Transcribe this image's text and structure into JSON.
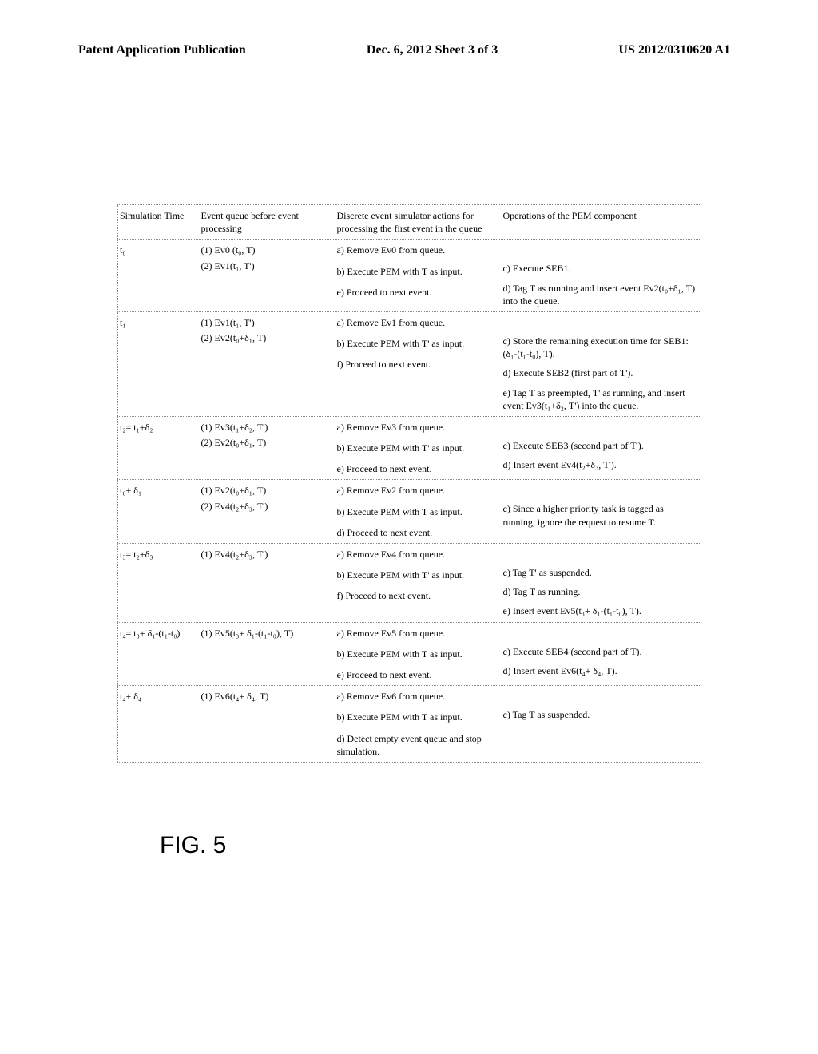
{
  "header": {
    "left": "Patent Application Publication",
    "center": "Dec. 6, 2012   Sheet 3 of 3",
    "right": "US 2012/0310620 A1"
  },
  "figure_label": "FIG. 5",
  "table": {
    "headers": {
      "c1": "Simulation Time",
      "c2": "Event queue before event processing",
      "c3": "Discrete event simulator actions for processing the first event in the queue",
      "c4": "Operations of the PEM component"
    },
    "rows": [
      {
        "time": "t₀",
        "queue": [
          "(1)  Ev0 (t₀, T)",
          "(2)  Ev1(t₁, T')"
        ],
        "actions": [
          "a) Remove Ev0 from queue.",
          "b) Execute PEM with T as input.",
          "e) Proceed to next event."
        ],
        "ops": [
          "c) Execute SEB1.",
          "d) Tag T as running and insert event Ev2(t₀+δ₁, T) into the queue."
        ]
      },
      {
        "time": "t₁",
        "queue": [
          "(1)  Ev1(t₁, T')",
          "(2)  Ev2(t₀+δ₁, T)"
        ],
        "actions": [
          "a) Remove Ev1 from queue.",
          "b) Execute PEM with T' as input.",
          "f) Proceed to next event."
        ],
        "ops": [
          "c) Store the remaining execution time for SEB1: (δ₁-(t₁-t₀), T).",
          "d) Execute SEB2 (first part of T').",
          "e) Tag T as preempted, T' as running, and insert event Ev3(t₁+δ₂, T') into the queue."
        ]
      },
      {
        "time": "t₂= t₁+δ₂",
        "queue": [
          "(1)  Ev3(t₁+δ₂, T')",
          "(2)  Ev2(t₀+δ₁, T)"
        ],
        "actions": [
          "a) Remove Ev3 from queue.",
          "b) Execute PEM with T' as input.",
          "e) Proceed to next event."
        ],
        "ops": [
          "c) Execute SEB3 (second part of T').",
          "d) Insert event Ev4(t₂+δ₃, T')."
        ]
      },
      {
        "time": "t₀+ δ₁",
        "queue": [
          "(1)  Ev2(t₀+δ₁, T)",
          "(2)  Ev4(t₂+δ₃, T')"
        ],
        "actions": [
          "a) Remove Ev2 from queue.",
          "b) Execute PEM with T as input.",
          "d) Proceed to next event."
        ],
        "ops": [
          "c) Since a higher priority task is tagged as running, ignore the request to resume T."
        ]
      },
      {
        "time": "t₃= t₂+δ₃",
        "queue": [
          "(1)  Ev4(t₂+δ₃, T')"
        ],
        "actions": [
          "a) Remove Ev4 from queue.",
          "b) Execute PEM with T' as input.",
          "f) Proceed to next event."
        ],
        "ops": [
          "c) Tag T' as suspended.",
          "d) Tag T as running.",
          "e) Insert event Ev5(t₃+ δ₁-(t₁-t₀), T)."
        ]
      },
      {
        "time": "t₄= t₃+ δ₁-(t₁-t₀)",
        "queue": [
          "(1)  Ev5(t₃+ δ₁-(t₁-t₀), T)"
        ],
        "actions": [
          "a) Remove Ev5 from queue.",
          "b) Execute PEM with T as input.",
          "e) Proceed to next event."
        ],
        "ops": [
          "c) Execute SEB4 (second part of T).",
          "d) Insert event Ev6(t₄+ δ₄, T)."
        ]
      },
      {
        "time": "t₄+ δ₄",
        "queue": [
          "(1)  Ev6(t₄+ δ₄, T)"
        ],
        "actions": [
          "a) Remove Ev6 from queue.",
          "b) Execute PEM with T as input.",
          "d) Detect empty event queue and stop simulation."
        ],
        "ops": [
          "c) Tag T as suspended."
        ]
      }
    ]
  }
}
